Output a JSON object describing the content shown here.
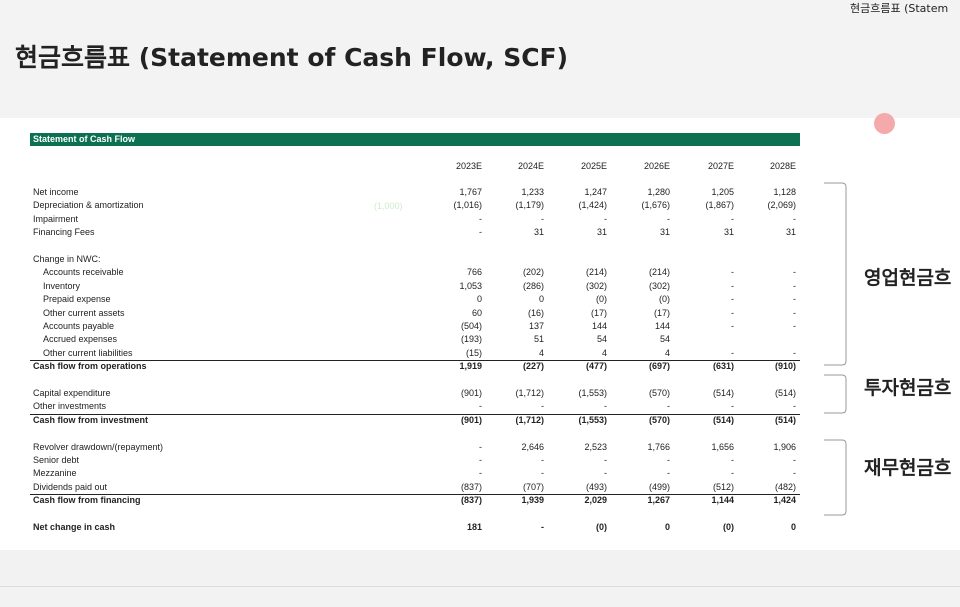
{
  "header": {
    "title": "현금흐름표 (Statement of Cash Flow, SCF)",
    "corner_title": "현금흐름표 (Statem"
  },
  "table": {
    "title": "Statement of Cash Flow",
    "columns": [
      "2023E",
      "2024E",
      "2025E",
      "2026E",
      "2027E",
      "2028E"
    ],
    "note": "(1,000)",
    "sections": [
      [
        {
          "label": "Net income",
          "values": [
            "1,767",
            "1,233",
            "1,247",
            "1,280",
            "1,205",
            "1,128"
          ]
        },
        {
          "label": "Depreciation & amortization",
          "values": [
            "(1,016)",
            "(1,179)",
            "(1,424)",
            "(1,676)",
            "(1,867)",
            "(2,069)"
          ]
        },
        {
          "label": "Impairment",
          "values": [
            "-",
            "-",
            "-",
            "-",
            "-",
            "-"
          ]
        },
        {
          "label": "Financing Fees",
          "values": [
            "-",
            "31",
            "31",
            "31",
            "31",
            "31"
          ]
        }
      ],
      [
        {
          "label": "Change in NWC:",
          "values": []
        },
        {
          "label": "Accounts receivable",
          "indent": true,
          "values": [
            "766",
            "(202)",
            "(214)",
            "(214)",
            "-",
            "-"
          ]
        },
        {
          "label": "Inventory",
          "indent": true,
          "values": [
            "1,053",
            "(286)",
            "(302)",
            "(302)",
            "-",
            "-"
          ]
        },
        {
          "label": "Prepaid expense",
          "indent": true,
          "values": [
            "0",
            "0",
            "(0)",
            "(0)",
            "-",
            "-"
          ]
        },
        {
          "label": "Other current assets",
          "indent": true,
          "values": [
            "60",
            "(16)",
            "(17)",
            "(17)",
            "-",
            "-"
          ]
        },
        {
          "label": "Accounts payable",
          "indent": true,
          "values": [
            "(504)",
            "137",
            "144",
            "144",
            "-",
            "-"
          ]
        },
        {
          "label": "Accrued expenses",
          "indent": true,
          "values": [
            "(193)",
            "51",
            "54",
            "54",
            null,
            null
          ]
        },
        {
          "label": "Other current liabilities",
          "indent": true,
          "values": [
            "(15)",
            "4",
            "4",
            "4",
            "-",
            "-"
          ]
        },
        {
          "label": "Cash flow from operations",
          "bold": true,
          "values": [
            "1,919",
            "(227)",
            "(477)",
            "(697)",
            "(631)",
            "(910)"
          ]
        }
      ],
      [
        {
          "label": "Capital expenditure",
          "values": [
            "(901)",
            "(1,712)",
            "(1,553)",
            "(570)",
            "(514)",
            "(514)"
          ]
        },
        {
          "label": "Other investments",
          "values": [
            "-",
            "-",
            "-",
            "-",
            "-",
            "-"
          ]
        },
        {
          "label": "Cash flow from investment",
          "bold": true,
          "values": [
            "(901)",
            "(1,712)",
            "(1,553)",
            "(570)",
            "(514)",
            "(514)"
          ]
        }
      ],
      [
        {
          "label": "Revolver drawdown/(repayment)",
          "values": [
            "-",
            "2,646",
            "2,523",
            "1,766",
            "1,656",
            "1,906"
          ]
        },
        {
          "label": "Senior debt",
          "values": [
            "-",
            "-",
            "-",
            "-",
            "-",
            "-"
          ]
        },
        {
          "label": "Mezzanine",
          "values": [
            "-",
            "-",
            "-",
            "-",
            "-",
            "-"
          ]
        },
        {
          "label": "Dividends paid out",
          "values": [
            "(837)",
            "(707)",
            "(493)",
            "(499)",
            "(512)",
            "(482)"
          ]
        },
        {
          "label": "Cash flow from financing",
          "bold": true,
          "values": [
            "(837)",
            "1,939",
            "2,029",
            "1,267",
            "1,144",
            "1,424"
          ]
        }
      ],
      [
        {
          "label": "Net change in cash",
          "bold": true,
          "values": [
            "181",
            "-",
            "(0)",
            "0",
            "(0)",
            "0"
          ]
        }
      ]
    ]
  },
  "side_labels": [
    "영업현금흐",
    "투자현금흐",
    "재무현금흐"
  ]
}
